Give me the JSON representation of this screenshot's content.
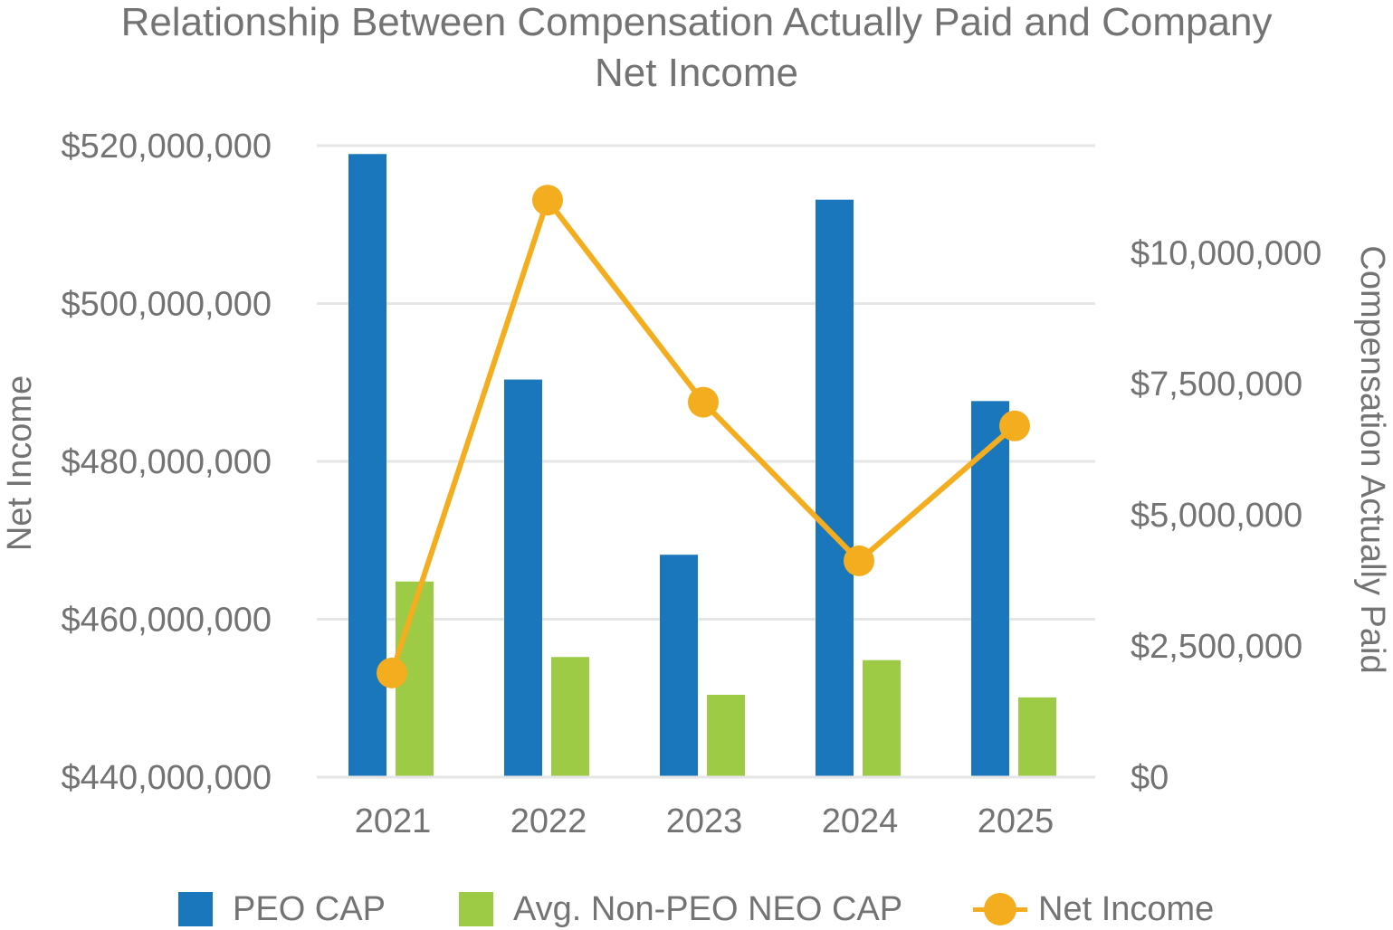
{
  "chart_data": {
    "type": "bar",
    "title_lines": [
      "Relationship Between Compensation Actually Paid and Company",
      "Net Income"
    ],
    "categories": [
      "2021",
      "2022",
      "2023",
      "2024",
      "2025"
    ],
    "y_left": {
      "label": "Net Income",
      "range": [
        440000000,
        520000000
      ],
      "ticks": [
        440000000,
        460000000,
        480000000,
        500000000,
        520000000
      ],
      "tick_labels": [
        "$440,000,000",
        "$460,000,000",
        "$480,000,000",
        "$500,000,000",
        "$520,000,000"
      ]
    },
    "y_right": {
      "label": "Compensation Actually Paid",
      "range": [
        0,
        12040000
      ],
      "ticks": [
        0,
        2500000,
        5000000,
        7500000,
        10000000
      ],
      "tick_labels": [
        "$0",
        "$2,500,000",
        "$5,000,000",
        "$7,500,000",
        "$10,000,000"
      ]
    },
    "series": [
      {
        "name": "PEO CAP",
        "type": "bar",
        "axis": "right",
        "color": "#1a77bb",
        "values": [
          11880000,
          7580000,
          4240000,
          11010000,
          7170000
        ]
      },
      {
        "name": "Avg. Non-PEO NEO CAP",
        "type": "bar",
        "axis": "right",
        "color": "#9dcb46",
        "values": [
          3730000,
          2290000,
          1570000,
          2230000,
          1520000
        ]
      },
      {
        "name": "Net Income",
        "type": "line",
        "axis": "left",
        "color": "#f4ad1e",
        "values": [
          453200000,
          513100000,
          487500000,
          467400000,
          484500000
        ]
      }
    ],
    "grid": true,
    "legend_position": "bottom"
  }
}
